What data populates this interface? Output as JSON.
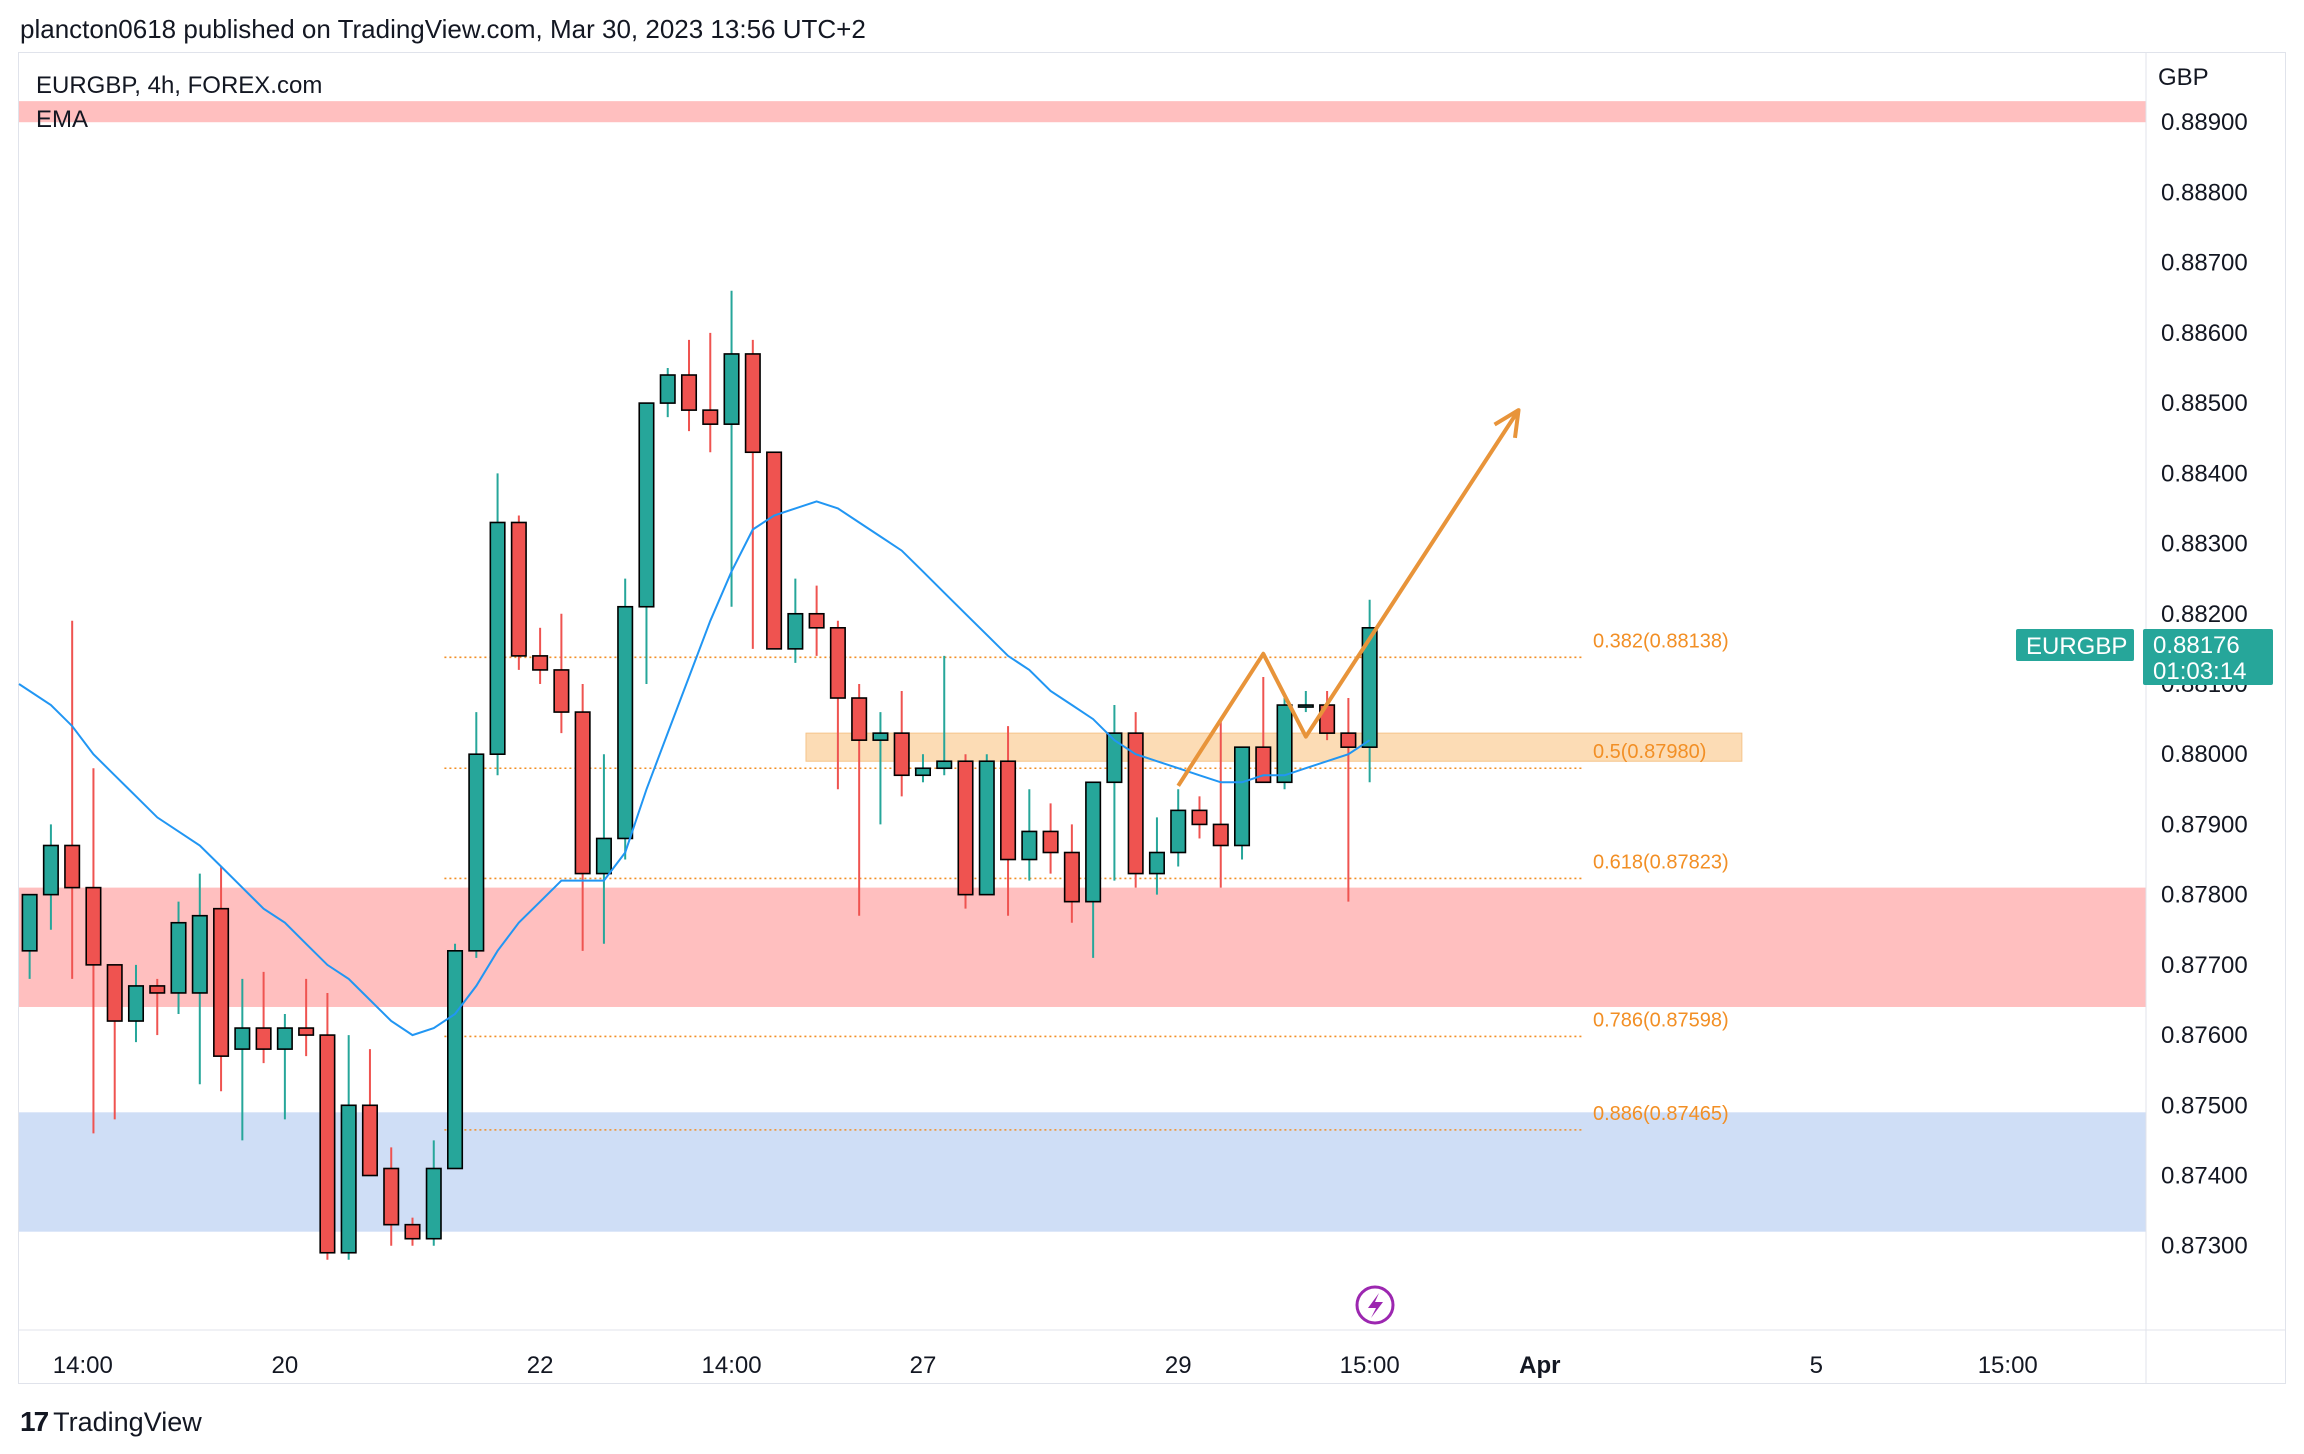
{
  "header": {
    "text": "plancton0618 published on TradingView.com, Mar 30, 2023 13:56 UTC+2"
  },
  "legend": {
    "symbol_line": "EURGBP, 4h, FOREX.com",
    "indicator": "EMA"
  },
  "price_axis": {
    "currency": "GBP"
  },
  "last_price_tag": {
    "symbol": "EURGBP",
    "price": "0.88176",
    "countdown": "01:03:14"
  },
  "footer": {
    "brand": "TradingView",
    "logo_icon": "tradingview-logo-icon"
  },
  "colors": {
    "up": "#26a69a",
    "down": "#ef5350",
    "ema": "#2196f3",
    "resistance_zone": "#ffbcbc",
    "support_zone": "#ccdcf6",
    "fib_line": "#f28f25",
    "fib_zone": "#fcdcb5",
    "projection_arrow": "#e8943a"
  },
  "chart_data": {
    "type": "candlestick",
    "title": "EURGBP, 4h, FOREX.com",
    "indicator": "EMA",
    "currency": "GBP",
    "y_ticks": [
      0.873,
      0.874,
      0.875,
      0.876,
      0.877,
      0.878,
      0.879,
      0.88,
      0.881,
      0.882,
      0.883,
      0.884,
      0.885,
      0.886,
      0.887,
      0.888,
      0.889
    ],
    "y_tick_labels": [
      "0.87300",
      "0.87400",
      "0.87500",
      "0.87600",
      "0.87700",
      "0.87800",
      "0.87900",
      "0.88000",
      "0.88100",
      "0.88200",
      "0.88300",
      "0.88400",
      "0.88500",
      "0.88600",
      "0.88700",
      "0.88800",
      "0.88900"
    ],
    "ylim": [
      0.8718,
      0.89
    ],
    "x_labels": [
      {
        "label": "14:00",
        "bar": 2.5
      },
      {
        "label": "20",
        "bar": 12
      },
      {
        "label": "22",
        "bar": 24
      },
      {
        "label": "14:00",
        "bar": 33
      },
      {
        "label": "27",
        "bar": 42
      },
      {
        "label": "29",
        "bar": 54
      },
      {
        "label": "15:00",
        "bar": 63
      },
      {
        "label": "Apr",
        "bar": 71
      },
      {
        "label": "5",
        "bar": 84
      },
      {
        "label": "15:00",
        "bar": 93
      }
    ],
    "candles": [
      {
        "o": 0.8772,
        "h": 0.878,
        "l": 0.8768,
        "c": 0.878
      },
      {
        "o": 0.878,
        "h": 0.879,
        "l": 0.8775,
        "c": 0.8787
      },
      {
        "o": 0.8787,
        "h": 0.8819,
        "l": 0.8768,
        "c": 0.8781
      },
      {
        "o": 0.8781,
        "h": 0.8798,
        "l": 0.8746,
        "c": 0.877
      },
      {
        "o": 0.877,
        "h": 0.877,
        "l": 0.8748,
        "c": 0.8762
      },
      {
        "o": 0.8762,
        "h": 0.877,
        "l": 0.8759,
        "c": 0.8767
      },
      {
        "o": 0.8767,
        "h": 0.8768,
        "l": 0.876,
        "c": 0.8766
      },
      {
        "o": 0.8766,
        "h": 0.8779,
        "l": 0.8763,
        "c": 0.8776
      },
      {
        "o": 0.8766,
        "h": 0.8783,
        "l": 0.8753,
        "c": 0.8777
      },
      {
        "o": 0.8778,
        "h": 0.8784,
        "l": 0.8752,
        "c": 0.8757
      },
      {
        "o": 0.8758,
        "h": 0.8768,
        "l": 0.8745,
        "c": 0.8761
      },
      {
        "o": 0.8761,
        "h": 0.8769,
        "l": 0.8756,
        "c": 0.8758
      },
      {
        "o": 0.8758,
        "h": 0.8763,
        "l": 0.8748,
        "c": 0.8761
      },
      {
        "o": 0.8761,
        "h": 0.8768,
        "l": 0.8757,
        "c": 0.876
      },
      {
        "o": 0.876,
        "h": 0.8766,
        "l": 0.8728,
        "c": 0.8729
      },
      {
        "o": 0.8729,
        "h": 0.876,
        "l": 0.8728,
        "c": 0.875
      },
      {
        "o": 0.875,
        "h": 0.8758,
        "l": 0.874,
        "c": 0.874
      },
      {
        "o": 0.8741,
        "h": 0.8744,
        "l": 0.873,
        "c": 0.8733
      },
      {
        "o": 0.8733,
        "h": 0.8734,
        "l": 0.873,
        "c": 0.8731
      },
      {
        "o": 0.8731,
        "h": 0.8745,
        "l": 0.873,
        "c": 0.8741
      },
      {
        "o": 0.8741,
        "h": 0.8773,
        "l": 0.8741,
        "c": 0.8772
      },
      {
        "o": 0.8772,
        "h": 0.8806,
        "l": 0.8771,
        "c": 0.88
      },
      {
        "o": 0.88,
        "h": 0.884,
        "l": 0.8797,
        "c": 0.8833
      },
      {
        "o": 0.8833,
        "h": 0.8834,
        "l": 0.8812,
        "c": 0.8814
      },
      {
        "o": 0.8814,
        "h": 0.8818,
        "l": 0.881,
        "c": 0.8812
      },
      {
        "o": 0.8812,
        "h": 0.882,
        "l": 0.8803,
        "c": 0.8806
      },
      {
        "o": 0.8806,
        "h": 0.881,
        "l": 0.8772,
        "c": 0.8783
      },
      {
        "o": 0.8783,
        "h": 0.88,
        "l": 0.8773,
        "c": 0.8788
      },
      {
        "o": 0.8788,
        "h": 0.8825,
        "l": 0.8785,
        "c": 0.8821
      },
      {
        "o": 0.8821,
        "h": 0.885,
        "l": 0.881,
        "c": 0.885
      },
      {
        "o": 0.885,
        "h": 0.8855,
        "l": 0.8848,
        "c": 0.8854
      },
      {
        "o": 0.8854,
        "h": 0.8859,
        "l": 0.8846,
        "c": 0.8849
      },
      {
        "o": 0.8849,
        "h": 0.886,
        "l": 0.8843,
        "c": 0.8847
      },
      {
        "o": 0.8847,
        "h": 0.8866,
        "l": 0.8821,
        "c": 0.8857
      },
      {
        "o": 0.8857,
        "h": 0.8859,
        "l": 0.8815,
        "c": 0.8843
      },
      {
        "o": 0.8843,
        "h": 0.8843,
        "l": 0.8815,
        "c": 0.8815
      },
      {
        "o": 0.8815,
        "h": 0.8825,
        "l": 0.8813,
        "c": 0.882
      },
      {
        "o": 0.882,
        "h": 0.8824,
        "l": 0.8814,
        "c": 0.8818
      },
      {
        "o": 0.8818,
        "h": 0.8819,
        "l": 0.8795,
        "c": 0.8808
      },
      {
        "o": 0.8808,
        "h": 0.881,
        "l": 0.8777,
        "c": 0.8802
      },
      {
        "o": 0.8802,
        "h": 0.8806,
        "l": 0.879,
        "c": 0.8803
      },
      {
        "o": 0.8803,
        "h": 0.8809,
        "l": 0.8794,
        "c": 0.8797
      },
      {
        "o": 0.8797,
        "h": 0.88,
        "l": 0.8796,
        "c": 0.8798
      },
      {
        "o": 0.8798,
        "h": 0.8814,
        "l": 0.8797,
        "c": 0.8799
      },
      {
        "o": 0.8799,
        "h": 0.88,
        "l": 0.8778,
        "c": 0.878
      },
      {
        "o": 0.878,
        "h": 0.88,
        "l": 0.878,
        "c": 0.8799
      },
      {
        "o": 0.8799,
        "h": 0.8804,
        "l": 0.8777,
        "c": 0.8785
      },
      {
        "o": 0.8785,
        "h": 0.8795,
        "l": 0.8782,
        "c": 0.8789
      },
      {
        "o": 0.8789,
        "h": 0.8793,
        "l": 0.8783,
        "c": 0.8786
      },
      {
        "o": 0.8786,
        "h": 0.879,
        "l": 0.8776,
        "c": 0.8779
      },
      {
        "o": 0.8779,
        "h": 0.8796,
        "l": 0.8771,
        "c": 0.8796
      },
      {
        "o": 0.8796,
        "h": 0.8807,
        "l": 0.8782,
        "c": 0.8803
      },
      {
        "o": 0.8803,
        "h": 0.8806,
        "l": 0.8781,
        "c": 0.8783
      },
      {
        "o": 0.8783,
        "h": 0.8791,
        "l": 0.878,
        "c": 0.8786
      },
      {
        "o": 0.8786,
        "h": 0.8795,
        "l": 0.8784,
        "c": 0.8792
      },
      {
        "o": 0.8792,
        "h": 0.8794,
        "l": 0.8788,
        "c": 0.879
      },
      {
        "o": 0.879,
        "h": 0.8805,
        "l": 0.8781,
        "c": 0.8787
      },
      {
        "o": 0.8787,
        "h": 0.88,
        "l": 0.8785,
        "c": 0.8801
      },
      {
        "o": 0.8801,
        "h": 0.8811,
        "l": 0.8796,
        "c": 0.8796
      },
      {
        "o": 0.8796,
        "h": 0.8808,
        "l": 0.8795,
        "c": 0.8807
      },
      {
        "o": 0.8807,
        "h": 0.8809,
        "l": 0.8806,
        "c": 0.8807
      },
      {
        "o": 0.8807,
        "h": 0.8809,
        "l": 0.8802,
        "c": 0.8803
      },
      {
        "o": 0.8803,
        "h": 0.8808,
        "l": 0.8779,
        "c": 0.8801
      },
      {
        "o": 0.8801,
        "h": 0.8822,
        "l": 0.8796,
        "c": 0.8818
      }
    ],
    "ema": [
      0.881,
      0.8807,
      0.8804,
      0.88,
      0.8797,
      0.8794,
      0.8791,
      0.8789,
      0.8787,
      0.8784,
      0.8781,
      0.8778,
      0.8776,
      0.8773,
      0.877,
      0.8768,
      0.8765,
      0.8762,
      0.876,
      0.8761,
      0.8763,
      0.8767,
      0.8772,
      0.8776,
      0.8779,
      0.8782,
      0.8782,
      0.8782,
      0.8786,
      0.8795,
      0.8803,
      0.8811,
      0.8819,
      0.8826,
      0.8832,
      0.8834,
      0.8835,
      0.8836,
      0.8835,
      0.8833,
      0.8831,
      0.8829,
      0.8826,
      0.8823,
      0.882,
      0.8817,
      0.8814,
      0.8812,
      0.8809,
      0.8807,
      0.8805,
      0.8802,
      0.88,
      0.8799,
      0.8798,
      0.8797,
      0.8796,
      0.8796,
      0.8797,
      0.8797,
      0.8798,
      0.8799,
      0.88,
      0.8802
    ],
    "zones": [
      {
        "type": "resistance",
        "top": 0.8893,
        "bottom": 0.889,
        "color": "#ffbcbc"
      },
      {
        "type": "resistance",
        "top": 0.8781,
        "bottom": 0.8764,
        "color": "#ffbcbc"
      },
      {
        "type": "support",
        "top": 0.8749,
        "bottom": 0.8732,
        "color": "#ccdcf6"
      }
    ],
    "fib_levels": [
      {
        "label": "0.382(0.88138)",
        "value": 0.88138
      },
      {
        "label": "0.5(0.87980)",
        "value": 0.8798
      },
      {
        "label": "0.618(0.87823)",
        "value": 0.87823
      },
      {
        "label": "0.786(0.87598)",
        "value": 0.87598
      },
      {
        "label": "0.886(0.87465)",
        "value": 0.87465
      }
    ],
    "fib_zone": {
      "top": 0.8803,
      "bottom": 0.8799,
      "from_bar": 37,
      "to_bar": 81
    },
    "projection_path": [
      {
        "bar": 54,
        "price": 0.87955
      },
      {
        "bar": 58,
        "price": 0.88143
      },
      {
        "bar": 60,
        "price": 0.88025
      },
      {
        "bar": 70,
        "price": 0.8849
      }
    ],
    "bars_visible": 100
  }
}
